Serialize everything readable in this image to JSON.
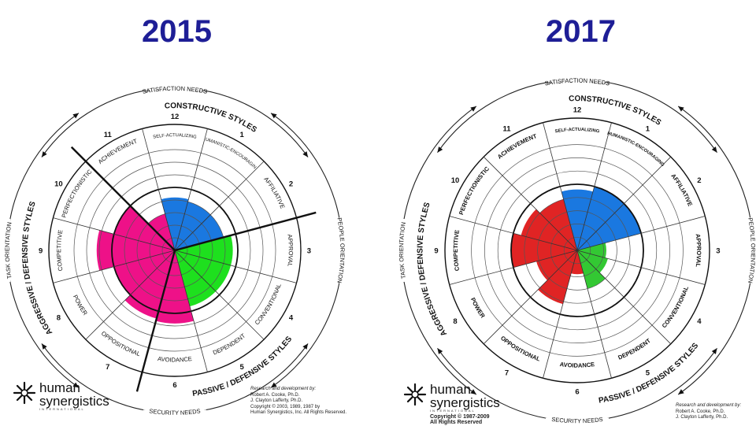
{
  "chart_data": [
    {
      "type": "circumplex",
      "title": "2015",
      "constructive_label": "CONSTRUCTIVE STYLES",
      "passive_label": "PASSIVE / DEFENSIVE STYLES",
      "aggressive_label": "AGGRESSIVE / DEFENSIVE STYLES",
      "satisfaction_label": "SATISFACTION NEEDS",
      "security_label": "SECURITY NEEDS",
      "task_label": "TASK ORIENTATION",
      "people_label": "PEOPLE ORIENTATION",
      "styles": [
        {
          "number": "12",
          "name": "SELF-ACTUALIZING",
          "value": 0.42
        },
        {
          "number": "1",
          "name": "HUMANISTIC-ENCOURAGING",
          "value": 0.4
        },
        {
          "number": "2",
          "name": "AFFILIATIVE",
          "value": 0.4
        },
        {
          "number": "3",
          "name": "APPROVAL",
          "value": 0.46
        },
        {
          "number": "4",
          "name": "CONVENTIONAL",
          "value": 0.46
        },
        {
          "number": "5",
          "name": "DEPENDENT",
          "value": 0.46
        },
        {
          "number": "6",
          "name": "AVOIDANCE",
          "value": 0.58
        },
        {
          "number": "7",
          "name": "OPPOSITIONAL",
          "value": 0.56
        },
        {
          "number": "8",
          "name": "POWER",
          "value": 0.5
        },
        {
          "number": "9",
          "name": "COMPETITIVE",
          "value": 0.62
        },
        {
          "number": "10",
          "name": "PERFECTIONISTIC",
          "value": 0.5
        },
        {
          "number": "11",
          "name": "ACHIEVEMENT",
          "value": 0.3
        }
      ]
    },
    {
      "type": "circumplex",
      "title": "2017",
      "constructive_label": "CONSTRUCTIVE STYLES",
      "passive_label": "PASSIVE / DEFENSIVE STYLES",
      "aggressive_label": "AGGRESSIVE / DEFENSIVE STYLES",
      "satisfaction_label": "SATISFACTION NEEDS",
      "security_label": "SECURITY NEEDS",
      "task_label": "TASK ORIENTATION",
      "people_label": "PEOPLE ORIENTATION",
      "styles": [
        {
          "number": "12",
          "name": "SELF-ACTUALIZING",
          "value": 0.46
        },
        {
          "number": "1",
          "name": "HUMANISTIC-ENCOURAGING",
          "value": 0.5
        },
        {
          "number": "2",
          "name": "AFFILIATIVE",
          "value": 0.5
        },
        {
          "number": "3",
          "name": "APPROVAL",
          "value": 0.22
        },
        {
          "number": "4",
          "name": "CONVENTIONAL",
          "value": 0.24
        },
        {
          "number": "5",
          "name": "DEPENDENT",
          "value": 0.3
        },
        {
          "number": "6",
          "name": "AVOIDANCE",
          "value": 0.18
        },
        {
          "number": "7",
          "name": "OPPOSITIONAL",
          "value": 0.42
        },
        {
          "number": "8",
          "name": "POWER",
          "value": 0.32
        },
        {
          "number": "9",
          "name": "COMPETITIVE",
          "value": 0.5
        },
        {
          "number": "10",
          "name": "PERFECTIONISTIC",
          "value": 0.44
        },
        {
          "number": "11",
          "name": "ACHIEVEMENT",
          "value": 0.4
        }
      ]
    }
  ],
  "colors": {
    "title": "#1e1e96",
    "constructive_2015": "#1a78e0",
    "passive_2015": "#1ee01e",
    "aggressive_2015": "#ee1188",
    "constructive_2017": "#1a78e0",
    "passive_2017": "#33c833",
    "aggressive_2017": "#e02424"
  },
  "logos": [
    {
      "line1": "human",
      "line2": "synergistics",
      "line3": "INTERNATIONAL",
      "copyright": "",
      "credits_heading": "Research and development by:",
      "credit1": "Robert A. Cooke, Ph.D.",
      "credit2": "J. Clayton Lafferty, Ph.D.",
      "credit3": "Copyright © 2003, 1989, 1987 by",
      "credit4": "Human Synergistics, Inc. All Rights Reserved."
    },
    {
      "line1": "human",
      "line2": "synergistics",
      "line3": "INTERNATIONAL",
      "copyright": "Copyright © 1987-2009",
      "copyright2": "All Rights Reserved",
      "credits_heading": "Research and development by:",
      "credit1": "Robert A. Cooke, Ph.D.",
      "credit2": "J. Clayton Lafferty, Ph.D."
    }
  ]
}
